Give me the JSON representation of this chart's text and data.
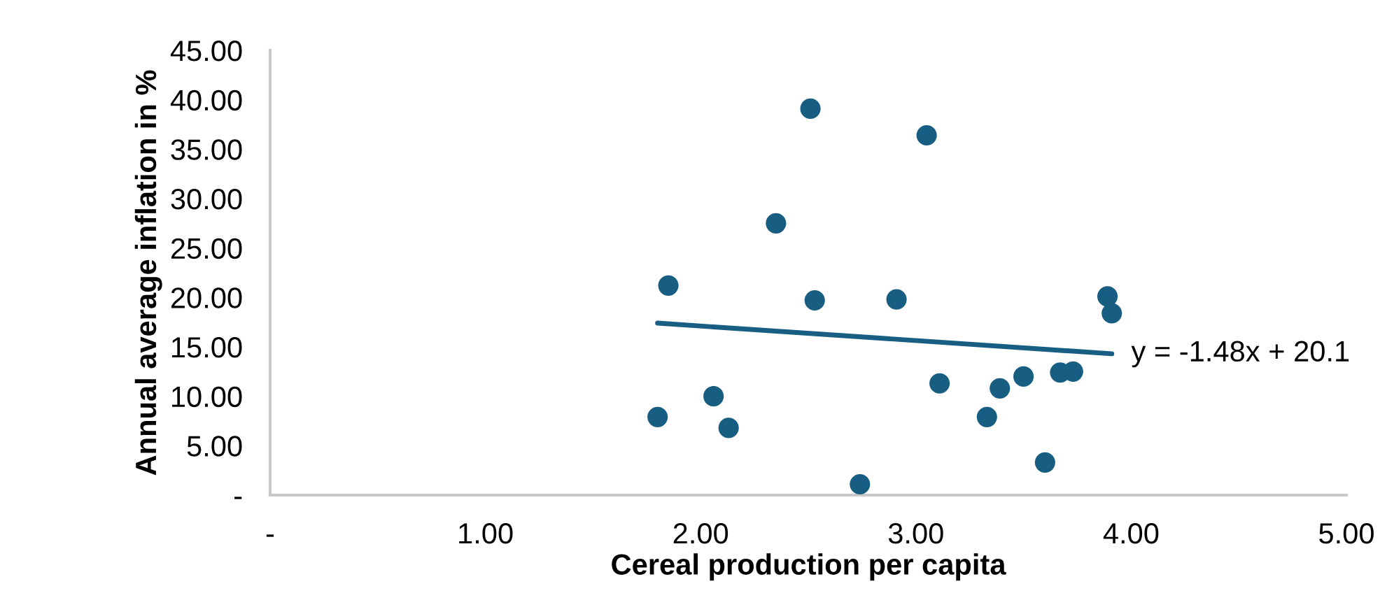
{
  "chart_data": {
    "type": "scatter",
    "xlabel": "Cereal production per capita",
    "ylabel": "Annual average inflation in %",
    "xlim": [
      0,
      5
    ],
    "ylim": [
      0,
      45
    ],
    "xticks": [
      {
        "value": 0,
        "label": "-"
      },
      {
        "value": 1,
        "label": "1.00"
      },
      {
        "value": 2,
        "label": "2.00"
      },
      {
        "value": 3,
        "label": "3.00"
      },
      {
        "value": 4,
        "label": "4.00"
      },
      {
        "value": 5,
        "label": "5.00"
      }
    ],
    "yticks": [
      {
        "value": 0,
        "label": "-"
      },
      {
        "value": 5,
        "label": "5.00"
      },
      {
        "value": 10,
        "label": "10.00"
      },
      {
        "value": 15,
        "label": "15.00"
      },
      {
        "value": 20,
        "label": "20.00"
      },
      {
        "value": 25,
        "label": "25.00"
      },
      {
        "value": 30,
        "label": "30.00"
      },
      {
        "value": 35,
        "label": "35.00"
      },
      {
        "value": 40,
        "label": "40.00"
      },
      {
        "value": 45,
        "label": "45.00"
      }
    ],
    "grid": false,
    "legend": false,
    "series": [
      {
        "marker": "circle",
        "color": "#175e82",
        "x": [
          1.8,
          1.85,
          2.06,
          2.13,
          2.35,
          2.51,
          2.53,
          2.74,
          2.91,
          3.05,
          3.11,
          3.33,
          3.39,
          3.5,
          3.6,
          3.67,
          3.73,
          3.89,
          3.91
        ],
        "values": [
          7.9,
          21.2,
          10.0,
          6.8,
          27.5,
          39.1,
          19.7,
          1.1,
          19.8,
          36.4,
          11.3,
          7.9,
          10.8,
          12.0,
          3.3,
          12.4,
          12.5,
          20.1,
          18.4
        ]
      },
      {
        "type": "line",
        "marker": "none",
        "color": "#175e82",
        "x": [
          1.8,
          3.91
        ],
        "values": [
          17.4,
          14.3
        ]
      }
    ],
    "annotations": [
      {
        "text": "y = -1.48x + 20.1",
        "x": 3.91,
        "y": 14.3
      }
    ]
  }
}
